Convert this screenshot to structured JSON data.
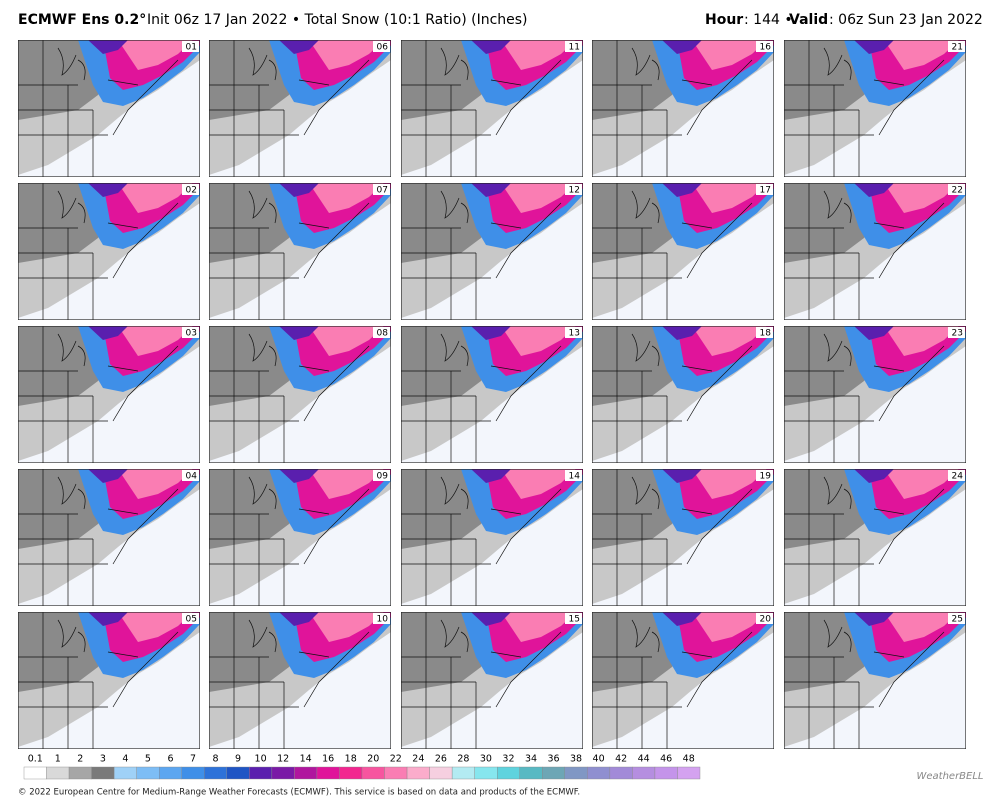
{
  "header": {
    "model": "ECMWF Ens 0.2°",
    "subtitle": "Init 06z 17 Jan 2022 • Total Snow (10:1 Ratio) (Inches)",
    "hour_label": "Hour",
    "hour": ": 144 •",
    "valid_label": "Valid",
    "valid": ": 06z Sun 23 Jan 2022"
  },
  "panels": [
    "01",
    "02",
    "03",
    "04",
    "05",
    "06",
    "07",
    "08",
    "09",
    "10",
    "11",
    "12",
    "13",
    "14",
    "15",
    "16",
    "17",
    "18",
    "19",
    "20",
    "21",
    "22",
    "23",
    "24",
    "25"
  ],
  "colorbar": {
    "levels": [
      0.1,
      1,
      2,
      3,
      4,
      5,
      6,
      7,
      8,
      9,
      10,
      12,
      14,
      16,
      18,
      20,
      22,
      24,
      26,
      28,
      30,
      32,
      34,
      36,
      38,
      40,
      42,
      44,
      46,
      48
    ],
    "colors": [
      "#ffffff",
      "#d9d9d9",
      "#a6a6a6",
      "#7a7a7a",
      "#9fd1f7",
      "#7dbdf5",
      "#5ca6f0",
      "#3f8fe8",
      "#2d72d9",
      "#1f55c4",
      "#5a1fae",
      "#7a1aa6",
      "#b0169e",
      "#e0149a",
      "#f2268f",
      "#f7559f",
      "#fa7db3",
      "#fbaccb",
      "#f6cfe0",
      "#b3ebf2",
      "#86e6ee",
      "#5fd3de",
      "#58b9c3",
      "#6da6b5",
      "#8097c4",
      "#8f8fd0",
      "#a28ad8",
      "#b58ee0",
      "#c494ea",
      "#d4a2f0"
    ]
  },
  "footer": "© 2022 European Centre for Medium-Range Weather Forecasts (ECMWF). This service is based on data and products of the ECMWF.",
  "logo": "WeatherBELL"
}
